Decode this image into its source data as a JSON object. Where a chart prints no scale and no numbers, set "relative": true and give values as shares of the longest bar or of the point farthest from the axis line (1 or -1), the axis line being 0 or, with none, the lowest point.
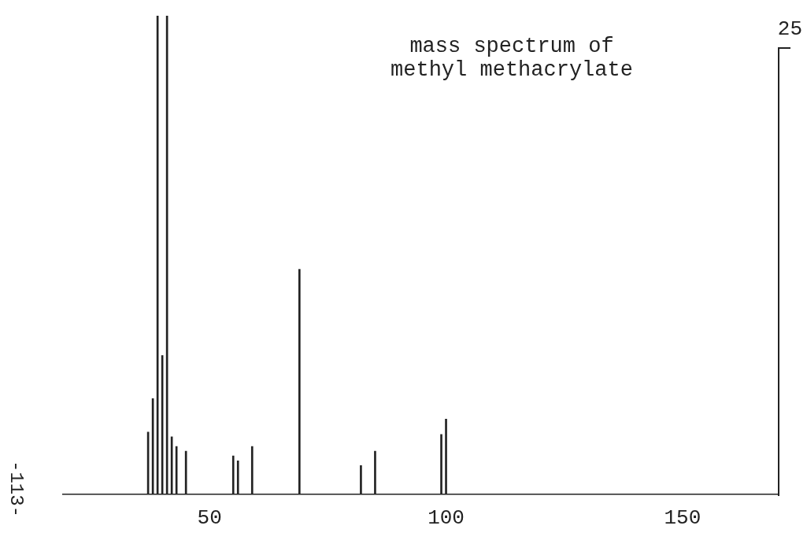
{
  "chart_data": {
    "type": "bar",
    "title": "mass spectrum of methyl methacrylate",
    "relative": true,
    "x": [
      37,
      38,
      39,
      40,
      41,
      42,
      43,
      45,
      55,
      56,
      59,
      69,
      82,
      85,
      99,
      100
    ],
    "values": [
      0.13,
      0.2,
      1,
      0.29,
      1,
      0.12,
      0.1,
      0.09,
      0.08,
      0.07,
      0.1,
      0.47,
      0.06,
      0.09,
      0.125,
      0.157
    ],
    "color": "#222222",
    "xlim": [
      19,
      170
    ],
    "xticks": [
      50,
      100,
      150
    ],
    "grid": false,
    "legend": false,
    "annotations": [
      "25",
      "-113-"
    ]
  }
}
